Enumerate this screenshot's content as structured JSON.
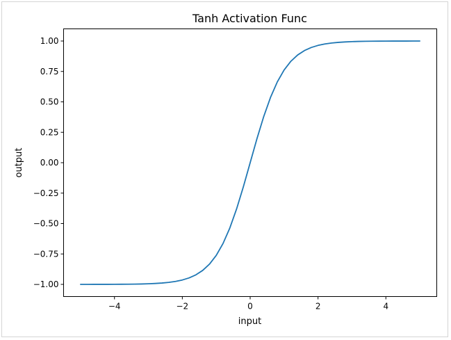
{
  "chart_data": {
    "type": "line",
    "title": "Tanh Activation Func",
    "xlabel": "input",
    "ylabel": "output",
    "xlim": [
      -5.5,
      5.5
    ],
    "ylim": [
      -1.1,
      1.1
    ],
    "xticks": [
      -4,
      -2,
      0,
      2,
      4
    ],
    "xtick_labels": [
      "−4",
      "−2",
      "0",
      "2",
      "4"
    ],
    "yticks": [
      -1.0,
      -0.75,
      -0.5,
      -0.25,
      0.0,
      0.25,
      0.5,
      0.75,
      1.0
    ],
    "ytick_labels": [
      "−1.00",
      "−0.75",
      "−0.50",
      "−0.25",
      "0.00",
      "0.25",
      "0.50",
      "0.75",
      "1.00"
    ],
    "grid": false,
    "line_color": "#1f77b4",
    "series": [
      {
        "x": [
          -5.0,
          -4.8,
          -4.6,
          -4.4,
          -4.2,
          -4.0,
          -3.8,
          -3.6,
          -3.4,
          -3.2,
          -3.0,
          -2.8,
          -2.6,
          -2.4,
          -2.2,
          -2.0,
          -1.8,
          -1.6,
          -1.4,
          -1.2,
          -1.0,
          -0.8,
          -0.6,
          -0.4,
          -0.2,
          0.0,
          0.2,
          0.4,
          0.6,
          0.8,
          1.0,
          1.2,
          1.4,
          1.6,
          1.8,
          2.0,
          2.2,
          2.4,
          2.6,
          2.8,
          3.0,
          3.2,
          3.4,
          3.6,
          3.8,
          4.0,
          4.2,
          4.4,
          4.6,
          4.8,
          5.0
        ],
        "y": [
          -0.9999,
          -0.9999,
          -0.9998,
          -0.9997,
          -0.9996,
          -0.9993,
          -0.999,
          -0.9985,
          -0.9978,
          -0.9967,
          -0.9951,
          -0.9926,
          -0.989,
          -0.9837,
          -0.9757,
          -0.964,
          -0.9468,
          -0.9217,
          -0.8854,
          -0.8337,
          -0.7616,
          -0.664,
          -0.537,
          -0.3799,
          -0.1974,
          0.0,
          0.1974,
          0.3799,
          0.537,
          0.664,
          0.7616,
          0.8337,
          0.8854,
          0.9217,
          0.9468,
          0.964,
          0.9757,
          0.9837,
          0.989,
          0.9926,
          0.9951,
          0.9967,
          0.9978,
          0.9985,
          0.999,
          0.9993,
          0.9996,
          0.9997,
          0.9998,
          0.9999,
          0.9999
        ]
      }
    ]
  }
}
